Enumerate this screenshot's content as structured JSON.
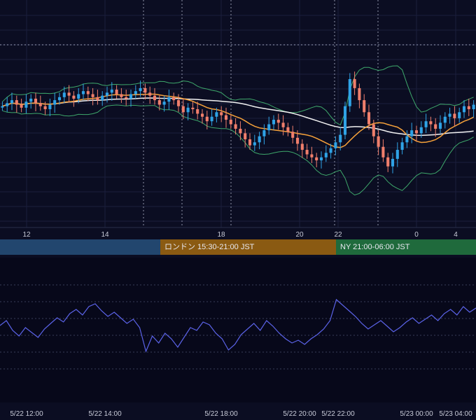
{
  "chart_data": [
    {
      "type": "candlestick",
      "panel": "price",
      "x_hour_ticks": [
        "12",
        "14",
        "18",
        "20",
        "22",
        "0",
        "4"
      ],
      "overlays": [
        {
          "kind": "moving-average",
          "color": "#f7a23a"
        },
        {
          "kind": "moving-average-long",
          "color": "#f2f2f2"
        },
        {
          "kind": "bollinger-bands",
          "color": "#3ea86b"
        }
      ],
      "up_color": "#2fa3e6",
      "down_color": "#f07f6c",
      "candles_close_relative": [
        0.62,
        0.64,
        0.66,
        0.63,
        0.61,
        0.65,
        0.67,
        0.64,
        0.62,
        0.6,
        0.63,
        0.66,
        0.68,
        0.71,
        0.69,
        0.67,
        0.7,
        0.72,
        0.7,
        0.68,
        0.66,
        0.69,
        0.71,
        0.73,
        0.7,
        0.68,
        0.67,
        0.7,
        0.72,
        0.74,
        0.71,
        0.69,
        0.66,
        0.63,
        0.65,
        0.68,
        0.66,
        0.62,
        0.58,
        0.61,
        0.6,
        0.57,
        0.55,
        0.52,
        0.55,
        0.58,
        0.56,
        0.53,
        0.5,
        0.47,
        0.44,
        0.4,
        0.36,
        0.38,
        0.42,
        0.46,
        0.5,
        0.53,
        0.51,
        0.48,
        0.45,
        0.41,
        0.37,
        0.33,
        0.3,
        0.28,
        0.26,
        0.28,
        0.31,
        0.34,
        0.38,
        0.43,
        0.62,
        0.8,
        0.74,
        0.66,
        0.58,
        0.5,
        0.42,
        0.35,
        0.28,
        0.22,
        0.27,
        0.33,
        0.38,
        0.42,
        0.46,
        0.44,
        0.48,
        0.52,
        0.5,
        0.47,
        0.51,
        0.55,
        0.57,
        0.54,
        0.58,
        0.62,
        0.6,
        0.63
      ]
    },
    {
      "type": "line",
      "panel": "oscillator",
      "color": "#5b63e8",
      "grid": "dotted",
      "x_tick_labels": [
        "5/22 12:00",
        "5/22 14:00",
        "5/22 18:00",
        "5/22 20:00",
        "5/22 22:00",
        "5/23 00:00",
        "5/23 04:00"
      ],
      "values": [
        0.55,
        0.62,
        0.48,
        0.4,
        0.52,
        0.45,
        0.38,
        0.5,
        0.58,
        0.66,
        0.6,
        0.72,
        0.78,
        0.7,
        0.82,
        0.86,
        0.76,
        0.68,
        0.74,
        0.66,
        0.58,
        0.64,
        0.52,
        0.18,
        0.4,
        0.3,
        0.44,
        0.36,
        0.24,
        0.38,
        0.52,
        0.48,
        0.6,
        0.56,
        0.44,
        0.36,
        0.2,
        0.28,
        0.42,
        0.5,
        0.58,
        0.48,
        0.62,
        0.54,
        0.44,
        0.36,
        0.3,
        0.34,
        0.28,
        0.36,
        0.42,
        0.5,
        0.62,
        0.92,
        0.84,
        0.76,
        0.68,
        0.58,
        0.5,
        0.56,
        0.62,
        0.54,
        0.46,
        0.52,
        0.6,
        0.66,
        0.58,
        0.64,
        0.7,
        0.62,
        0.72,
        0.78,
        0.7,
        0.82,
        0.74,
        0.8
      ]
    }
  ],
  "sessions": {
    "tokyo": "",
    "london": "ロンドン 15:30-21:00 JST",
    "ny": "NY 21:00-06:00 JST"
  }
}
